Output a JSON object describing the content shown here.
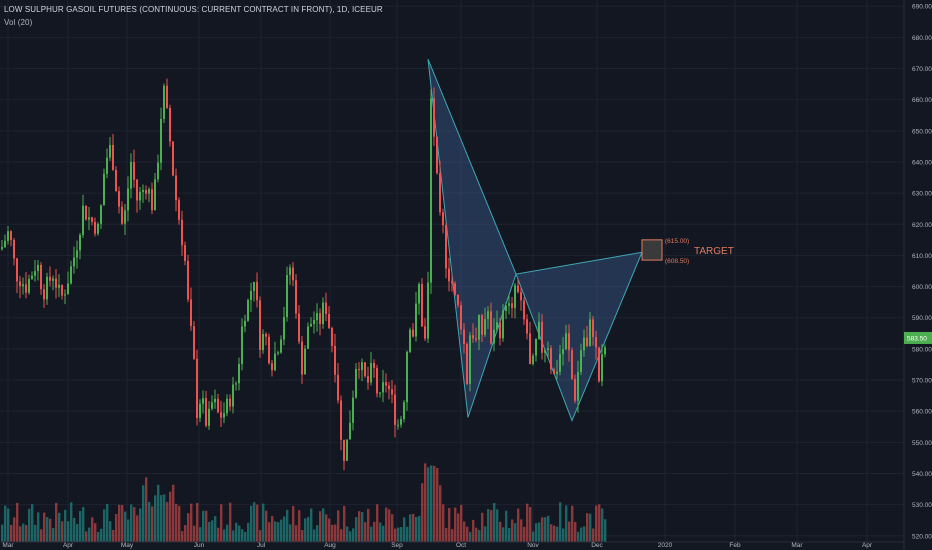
{
  "header": {
    "title": "LOW SULPHUR GASOIL FUTURES (CONTINUOUS: CURRENT CONTRACT IN FRONT), 1D, ICEEUR",
    "volume_label": "Vol (20)"
  },
  "colors": {
    "background": "#131722",
    "up": "#26a69a",
    "up_candle": "#4caf50",
    "down": "#ef5350",
    "grid": "#1f2330",
    "pattern_stroke": "#3fa7b3",
    "pattern_fill": "#3a5a8c",
    "target_box": "#e07b5f",
    "last_price_bg": "#4caf50"
  },
  "chart_data": {
    "type": "candlestick",
    "title": "LOW SULPHUR GASOIL FUTURES (CONTINUOUS: CURRENT CONTRACT IN FRONT), 1D, ICEEUR",
    "ylim": [
      518,
      692
    ],
    "y_ticks": [
      "520.00",
      "530.00",
      "540.00",
      "550.00",
      "560.00",
      "570.00",
      "580.00",
      "590.00",
      "600.00",
      "610.00",
      "620.00",
      "630.00",
      "640.00",
      "650.00",
      "660.00",
      "670.00",
      "680.00",
      "690.00"
    ],
    "x_ticks": [
      "Mar",
      "Apr",
      "May",
      "Jun",
      "Jul",
      "Aug",
      "Sep",
      "Oct",
      "Nov",
      "Dec",
      "2020",
      "Feb",
      "Mar",
      "Apr"
    ],
    "last_price": "583.50",
    "close_path": [
      [
        0,
        612
      ],
      [
        8,
        618
      ],
      [
        15,
        604
      ],
      [
        25,
        600
      ],
      [
        36,
        608
      ],
      [
        42,
        598
      ],
      [
        52,
        604
      ],
      [
        60,
        596
      ],
      [
        65,
        600
      ],
      [
        75,
        612
      ],
      [
        82,
        625
      ],
      [
        88,
        622
      ],
      [
        98,
        618
      ],
      [
        104,
        640
      ],
      [
        110,
        645
      ],
      [
        116,
        630
      ],
      [
        122,
        618
      ],
      [
        130,
        640
      ],
      [
        136,
        628
      ],
      [
        146,
        633
      ],
      [
        152,
        625
      ],
      [
        158,
        645
      ],
      [
        162,
        665
      ],
      [
        168,
        650
      ],
      [
        174,
        630
      ],
      [
        180,
        618
      ],
      [
        184,
        608
      ],
      [
        188,
        590
      ],
      [
        192,
        580
      ],
      [
        196,
        560
      ],
      [
        200,
        565
      ],
      [
        206,
        555
      ],
      [
        212,
        564
      ],
      [
        218,
        558
      ],
      [
        224,
        560
      ],
      [
        230,
        565
      ],
      [
        236,
        570
      ],
      [
        242,
        590
      ],
      [
        248,
        596
      ],
      [
        254,
        605
      ],
      [
        258,
        582
      ],
      [
        264,
        585
      ],
      [
        270,
        575
      ],
      [
        276,
        580
      ],
      [
        282,
        588
      ],
      [
        288,
        608
      ],
      [
        294,
        598
      ],
      [
        300,
        572
      ],
      [
        306,
        585
      ],
      [
        312,
        590
      ],
      [
        318,
        588
      ],
      [
        324,
        595
      ],
      [
        330,
        584
      ],
      [
        336,
        570
      ],
      [
        340,
        550
      ],
      [
        344,
        545
      ],
      [
        350,
        560
      ],
      [
        356,
        578
      ],
      [
        360,
        574
      ],
      [
        366,
        568
      ],
      [
        372,
        575
      ],
      [
        378,
        562
      ],
      [
        384,
        570
      ],
      [
        390,
        565
      ],
      [
        396,
        555
      ],
      [
        402,
        560
      ],
      [
        408,
        590
      ],
      [
        412,
        585
      ],
      [
        418,
        600
      ],
      [
        422,
        585
      ],
      [
        426,
        580
      ],
      [
        430,
        660
      ],
      [
        434,
        645
      ],
      [
        438,
        622
      ],
      [
        442,
        618
      ],
      [
        446,
        605
      ],
      [
        450,
        603
      ],
      [
        454,
        596
      ],
      [
        458,
        592
      ],
      [
        462,
        585
      ],
      [
        466,
        570
      ],
      [
        470,
        590
      ],
      [
        474,
        580
      ],
      [
        478,
        588
      ],
      [
        482,
        584
      ],
      [
        486,
        596
      ],
      [
        490,
        580
      ],
      [
        494,
        590
      ],
      [
        498,
        585
      ],
      [
        502,
        590
      ],
      [
        506,
        598
      ],
      [
        510,
        588
      ],
      [
        514,
        600
      ],
      [
        518,
        596
      ],
      [
        522,
        590
      ],
      [
        526,
        585
      ],
      [
        530,
        570
      ],
      [
        534,
        580
      ],
      [
        538,
        586
      ],
      [
        542,
        578
      ],
      [
        546,
        584
      ],
      [
        550,
        575
      ],
      [
        554,
        570
      ],
      [
        558,
        578
      ],
      [
        562,
        580
      ],
      [
        566,
        585
      ],
      [
        570,
        572
      ],
      [
        574,
        565
      ],
      [
        578,
        575
      ],
      [
        582,
        585
      ],
      [
        586,
        580
      ],
      [
        590,
        590
      ],
      [
        594,
        582
      ],
      [
        598,
        570
      ],
      [
        602,
        578
      ],
      [
        606,
        583.5
      ]
    ],
    "harmonic_pattern": {
      "points": [
        [
          428,
          673
        ],
        [
          468,
          558
        ],
        [
          516,
          604
        ],
        [
          572,
          557
        ],
        [
          642,
          611
        ]
      ]
    },
    "target_zone": {
      "label": "TARGET",
      "upper": "(615.00)",
      "lower": "(608.50)",
      "upper_value": 615.0,
      "lower_value": 608.5
    }
  }
}
